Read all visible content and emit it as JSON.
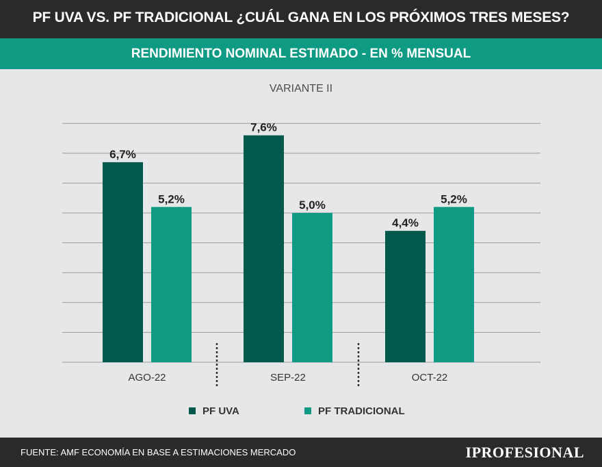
{
  "header": {
    "title": "PF UVA VS. PF TRADICIONAL ¿CUÁL GANA EN LOS PRÓXIMOS TRES MESES?",
    "subtitle": "RENDIMIENTO NOMINAL ESTIMADO - EN % MENSUAL"
  },
  "chart_data": {
    "type": "bar",
    "title": "VARIANTE II",
    "categories": [
      "AGO-22",
      "SEP-22",
      "OCT-22"
    ],
    "series": [
      {
        "name": "PF UVA",
        "values": [
          6.7,
          7.6,
          4.4
        ],
        "labels": [
          "6,7%",
          "7,6%",
          "4,4%"
        ],
        "color": "#03594b"
      },
      {
        "name": "PF TRADICIONAL",
        "values": [
          5.2,
          5.0,
          5.2
        ],
        "labels": [
          "5,2%",
          "5,0%",
          "5,2%"
        ],
        "color": "#0f9a84"
      }
    ],
    "ylim": [
      0,
      8
    ],
    "grid": true,
    "legend": "bottom-center",
    "xlabel": "",
    "ylabel": ""
  },
  "footer": {
    "source": "FUENTE: AMF ECONOMÍA EN BASE A ESTIMACIONES MERCADO",
    "logo": "IPROFESIONAL"
  }
}
